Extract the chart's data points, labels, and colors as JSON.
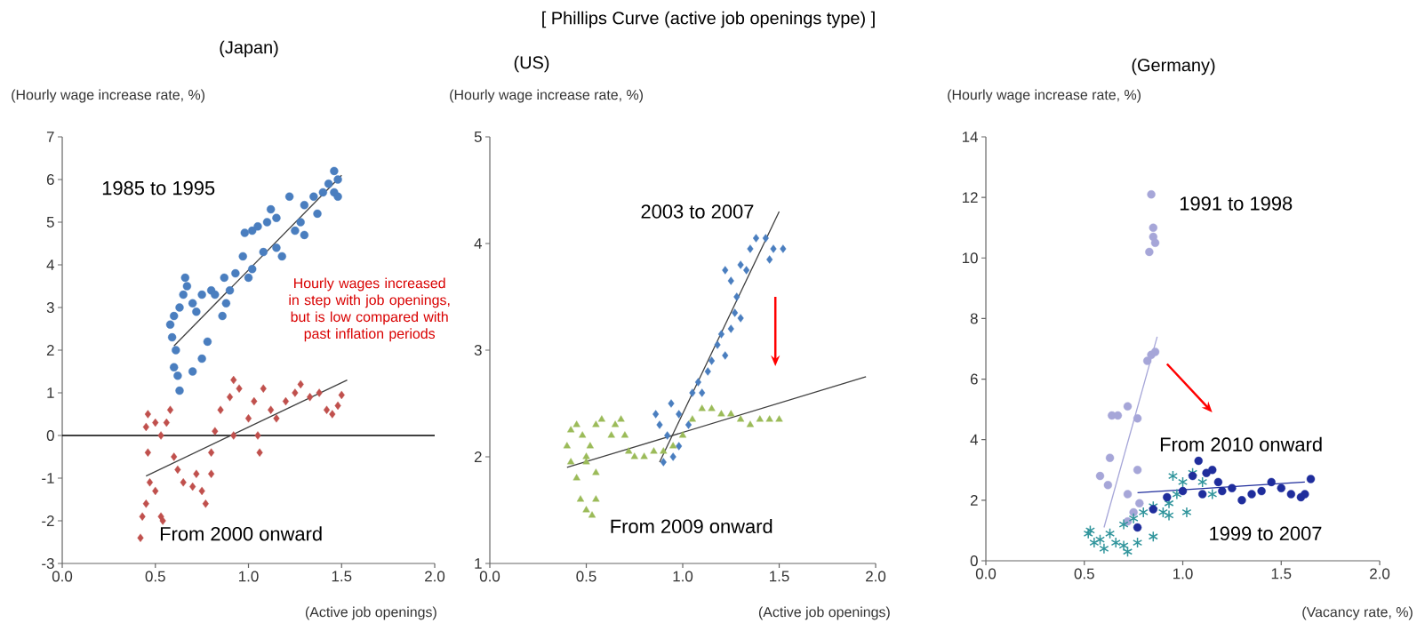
{
  "chart_data": [
    {
      "type": "scatter",
      "subtitle": "(Japan)",
      "xlabel": "(Active job openings)",
      "ylabel": "(Hourly wage increase rate, %)",
      "xlim": [
        0,
        2
      ],
      "ylim": [
        -3,
        7
      ],
      "xticks": [
        {
          "value": 0,
          "label": "0.0"
        },
        {
          "value": 0.5,
          "label": "0.5"
        },
        {
          "value": 1,
          "label": "1.0"
        },
        {
          "value": 1.5,
          "label": "1.5"
        },
        {
          "value": 2,
          "label": "2.0"
        }
      ],
      "yticks": [
        -3,
        -2,
        -1,
        0,
        1,
        2,
        3,
        4,
        5,
        6,
        7
      ],
      "annotations": [
        "Hourly wages increased in step with job openings, but is low compared with past inflation periods"
      ],
      "ref_lines": [
        {
          "axis": "y",
          "value": 0,
          "color": "#000000"
        }
      ],
      "series": [
        {
          "name": "1985 to 1995",
          "marker": "circle",
          "color": "#4a7ebf",
          "x": [
            0.63,
            0.62,
            0.6,
            0.61,
            0.59,
            0.58,
            0.6,
            0.63,
            0.65,
            0.66,
            0.67,
            0.7,
            0.72,
            0.75,
            0.8,
            0.82,
            0.78,
            0.75,
            0.7,
            0.86,
            0.88,
            0.9,
            0.87,
            0.93,
            0.97,
            1.0,
            1.02,
            0.98,
            1.02,
            1.05,
            1.1,
            1.12,
            1.15,
            1.08,
            1.15,
            1.18,
            1.22,
            1.25,
            1.28,
            1.3,
            1.3,
            1.35,
            1.37,
            1.4,
            1.43,
            1.46,
            1.48,
            1.46,
            1.48
          ],
          "values": [
            1.05,
            1.4,
            1.6,
            2.0,
            2.3,
            2.6,
            2.8,
            3.0,
            3.3,
            3.7,
            3.5,
            3.1,
            2.9,
            3.3,
            3.4,
            3.3,
            2.2,
            1.8,
            1.5,
            2.8,
            3.1,
            3.4,
            3.7,
            3.8,
            4.2,
            3.7,
            3.9,
            4.75,
            4.8,
            4.9,
            5.0,
            5.3,
            5.1,
            4.3,
            4.4,
            4.2,
            5.6,
            4.8,
            5.0,
            4.7,
            5.4,
            5.6,
            5.2,
            5.7,
            5.9,
            6.2,
            6.0,
            5.7,
            5.6
          ]
        },
        {
          "type": "line",
          "marker": "none",
          "color": "#404040",
          "x": [
            0.6,
            1.5
          ],
          "values": [
            2.1,
            6.1
          ]
        },
        {
          "name": "From 2000 onward",
          "marker": "diamond",
          "color": "#c0504d",
          "x": [
            0.42,
            0.43,
            0.45,
            0.47,
            0.5,
            0.53,
            0.54,
            0.46,
            0.45,
            0.46,
            0.5,
            0.53,
            0.56,
            0.58,
            0.6,
            0.62,
            0.65,
            0.7,
            0.72,
            0.75,
            0.77,
            0.8,
            0.8,
            0.82,
            0.85,
            0.9,
            0.92,
            0.95,
            0.92,
            1.0,
            1.05,
            1.06,
            1.03,
            1.08,
            1.12,
            1.15,
            1.2,
            1.25,
            1.28,
            1.33,
            1.38,
            1.42,
            1.45,
            1.48,
            1.5
          ],
          "values": [
            -2.4,
            -1.9,
            -1.6,
            -1.1,
            -1.3,
            -1.9,
            -2.0,
            -0.4,
            0.2,
            0.5,
            0.3,
            0.0,
            0.3,
            0.6,
            -0.5,
            -0.8,
            -1.1,
            -1.2,
            -0.9,
            -1.3,
            -1.6,
            -0.9,
            -0.4,
            0.1,
            0.6,
            0.9,
            1.3,
            1.1,
            0.0,
            0.4,
            0.0,
            -0.4,
            0.8,
            1.1,
            0.6,
            0.4,
            0.8,
            1.0,
            1.2,
            0.9,
            1.0,
            0.6,
            0.5,
            0.7,
            0.95
          ]
        },
        {
          "type": "line",
          "marker": "none",
          "color": "#404040",
          "x": [
            0.45,
            1.53
          ],
          "values": [
            -0.95,
            1.3
          ]
        }
      ]
    },
    {
      "type": "scatter",
      "title": "[ Phillips Curve (active job openings type) ]",
      "subtitle": "(US)",
      "xlabel": "(Active job openings)",
      "ylabel": "(Hourly wage increase rate, %)",
      "xlim": [
        0,
        2
      ],
      "ylim": [
        1,
        5
      ],
      "xticks": [
        {
          "value": 0,
          "label": "0.0"
        },
        {
          "value": 0.5,
          "label": "0.5"
        },
        {
          "value": 1,
          "label": "1.0"
        },
        {
          "value": 1.5,
          "label": "1.5"
        },
        {
          "value": 2,
          "label": "2.0"
        }
      ],
      "yticks": [
        1,
        2,
        3,
        4,
        5
      ],
      "series": [
        {
          "name": "2003 to 2007",
          "marker": "diamond",
          "color": "#4a7ebf",
          "x": [
            0.9,
            0.95,
            0.98,
            0.92,
            0.86,
            0.88,
            0.94,
            0.98,
            1.03,
            1.05,
            1.08,
            1.1,
            1.13,
            1.15,
            1.18,
            1.22,
            1.2,
            1.25,
            1.27,
            1.28,
            1.3,
            1.25,
            1.22,
            1.3,
            1.35,
            1.38,
            1.43,
            1.47,
            1.52,
            1.45,
            1.33
          ],
          "values": [
            1.95,
            2.0,
            2.1,
            2.2,
            2.4,
            2.3,
            2.5,
            2.4,
            2.3,
            2.6,
            2.7,
            2.6,
            2.8,
            2.9,
            3.05,
            2.95,
            3.15,
            3.2,
            3.35,
            3.5,
            3.3,
            3.65,
            3.75,
            3.8,
            3.95,
            4.05,
            4.05,
            3.95,
            3.95,
            3.85,
            3.75
          ]
        },
        {
          "type": "line",
          "marker": "none",
          "color": "#404040",
          "x": [
            0.88,
            1.5
          ],
          "values": [
            1.95,
            4.3
          ]
        },
        {
          "name": "From 2009 onward",
          "marker": "triangle",
          "color": "#9bbb59",
          "x": [
            0.4,
            0.42,
            0.45,
            0.48,
            0.5,
            0.52,
            0.55,
            0.58,
            0.63,
            0.65,
            0.68,
            0.7,
            0.72,
            0.75,
            0.8,
            0.85,
            0.9,
            0.95,
            1.0,
            1.05,
            1.1,
            1.15,
            1.2,
            1.25,
            1.3,
            1.35,
            1.4,
            1.45,
            1.5,
            0.42,
            0.45,
            0.47,
            0.5,
            0.53,
            0.55,
            0.55,
            0.5
          ],
          "values": [
            2.1,
            2.25,
            2.3,
            2.2,
            2.0,
            2.1,
            2.3,
            2.35,
            2.2,
            2.3,
            2.35,
            2.2,
            2.05,
            2.0,
            2.0,
            2.05,
            2.05,
            2.1,
            2.2,
            2.35,
            2.45,
            2.45,
            2.4,
            2.4,
            2.35,
            2.3,
            2.35,
            2.35,
            2.35,
            1.95,
            1.8,
            1.6,
            1.5,
            1.45,
            1.6,
            1.85,
            1.95
          ]
        },
        {
          "type": "line",
          "marker": "none",
          "color": "#404040",
          "x": [
            0.4,
            1.95
          ],
          "values": [
            1.9,
            2.75
          ]
        }
      ]
    },
    {
      "type": "scatter",
      "subtitle": "(Germany)",
      "xlabel": "(Vacancy rate, %)",
      "ylabel": "(Hourly wage increase rate, %)",
      "xlim": [
        0,
        2
      ],
      "ylim": [
        0,
        14
      ],
      "xticks": [
        {
          "value": 0,
          "label": "0.0"
        },
        {
          "value": 0.5,
          "label": "0.5"
        },
        {
          "value": 1,
          "label": "1.0"
        },
        {
          "value": 1.5,
          "label": "1.5"
        },
        {
          "value": 2,
          "label": "2.0"
        }
      ],
      "yticks": [
        0,
        2,
        4,
        6,
        8,
        10,
        12,
        14
      ],
      "series": [
        {
          "name": "1991 to 1998",
          "marker": "circle",
          "color": "#a6a6d8",
          "x": [
            0.84,
            0.85,
            0.85,
            0.86,
            0.83,
            0.82,
            0.84,
            0.86,
            0.72,
            0.64,
            0.67,
            0.77,
            0.63,
            0.58,
            0.62,
            0.77,
            0.72,
            0.78,
            0.75,
            0.72
          ],
          "values": [
            12.1,
            11.0,
            10.7,
            10.5,
            10.2,
            6.6,
            6.8,
            6.9,
            5.1,
            4.8,
            4.8,
            4.7,
            3.4,
            2.8,
            2.5,
            3.0,
            2.2,
            1.9,
            1.6,
            1.3
          ]
        },
        {
          "type": "line",
          "marker": "none",
          "color": "#a6a6d8",
          "x": [
            0.6,
            0.87
          ],
          "values": [
            1.1,
            7.4
          ]
        },
        {
          "name": "1999 to 2007",
          "marker": "cross",
          "color": "#31959c",
          "x": [
            0.52,
            0.55,
            0.53,
            0.58,
            0.6,
            0.63,
            0.66,
            0.7,
            0.72,
            0.77,
            0.85,
            0.7,
            0.75,
            0.8,
            0.85,
            0.9,
            0.93,
            0.97,
            0.95,
            1.0,
            1.05,
            1.1,
            1.15,
            1.02,
            0.93
          ],
          "values": [
            0.9,
            0.6,
            1.0,
            0.7,
            0.4,
            0.9,
            0.6,
            0.5,
            0.3,
            0.6,
            0.8,
            1.2,
            1.4,
            1.6,
            1.8,
            1.6,
            1.9,
            2.2,
            2.8,
            2.6,
            2.9,
            2.6,
            2.2,
            1.6,
            1.5
          ]
        },
        {
          "name": "From 2010 onward",
          "marker": "circle",
          "color": "#1f2d9c",
          "x": [
            0.77,
            0.85,
            0.92,
            1.0,
            1.05,
            1.08,
            1.12,
            1.15,
            1.18,
            1.1,
            1.2,
            1.25,
            1.3,
            1.35,
            1.4,
            1.45,
            1.5,
            1.55,
            1.6,
            1.62,
            1.65
          ],
          "values": [
            1.1,
            1.7,
            2.1,
            2.3,
            2.8,
            3.3,
            2.9,
            3.0,
            2.6,
            2.2,
            2.3,
            2.4,
            2.0,
            2.2,
            2.3,
            2.6,
            2.4,
            2.2,
            2.1,
            2.2,
            2.7
          ]
        },
        {
          "type": "line",
          "marker": "none",
          "color": "#1f2d9c",
          "x": [
            0.77,
            1.62
          ],
          "values": [
            2.25,
            2.6
          ]
        }
      ]
    }
  ]
}
